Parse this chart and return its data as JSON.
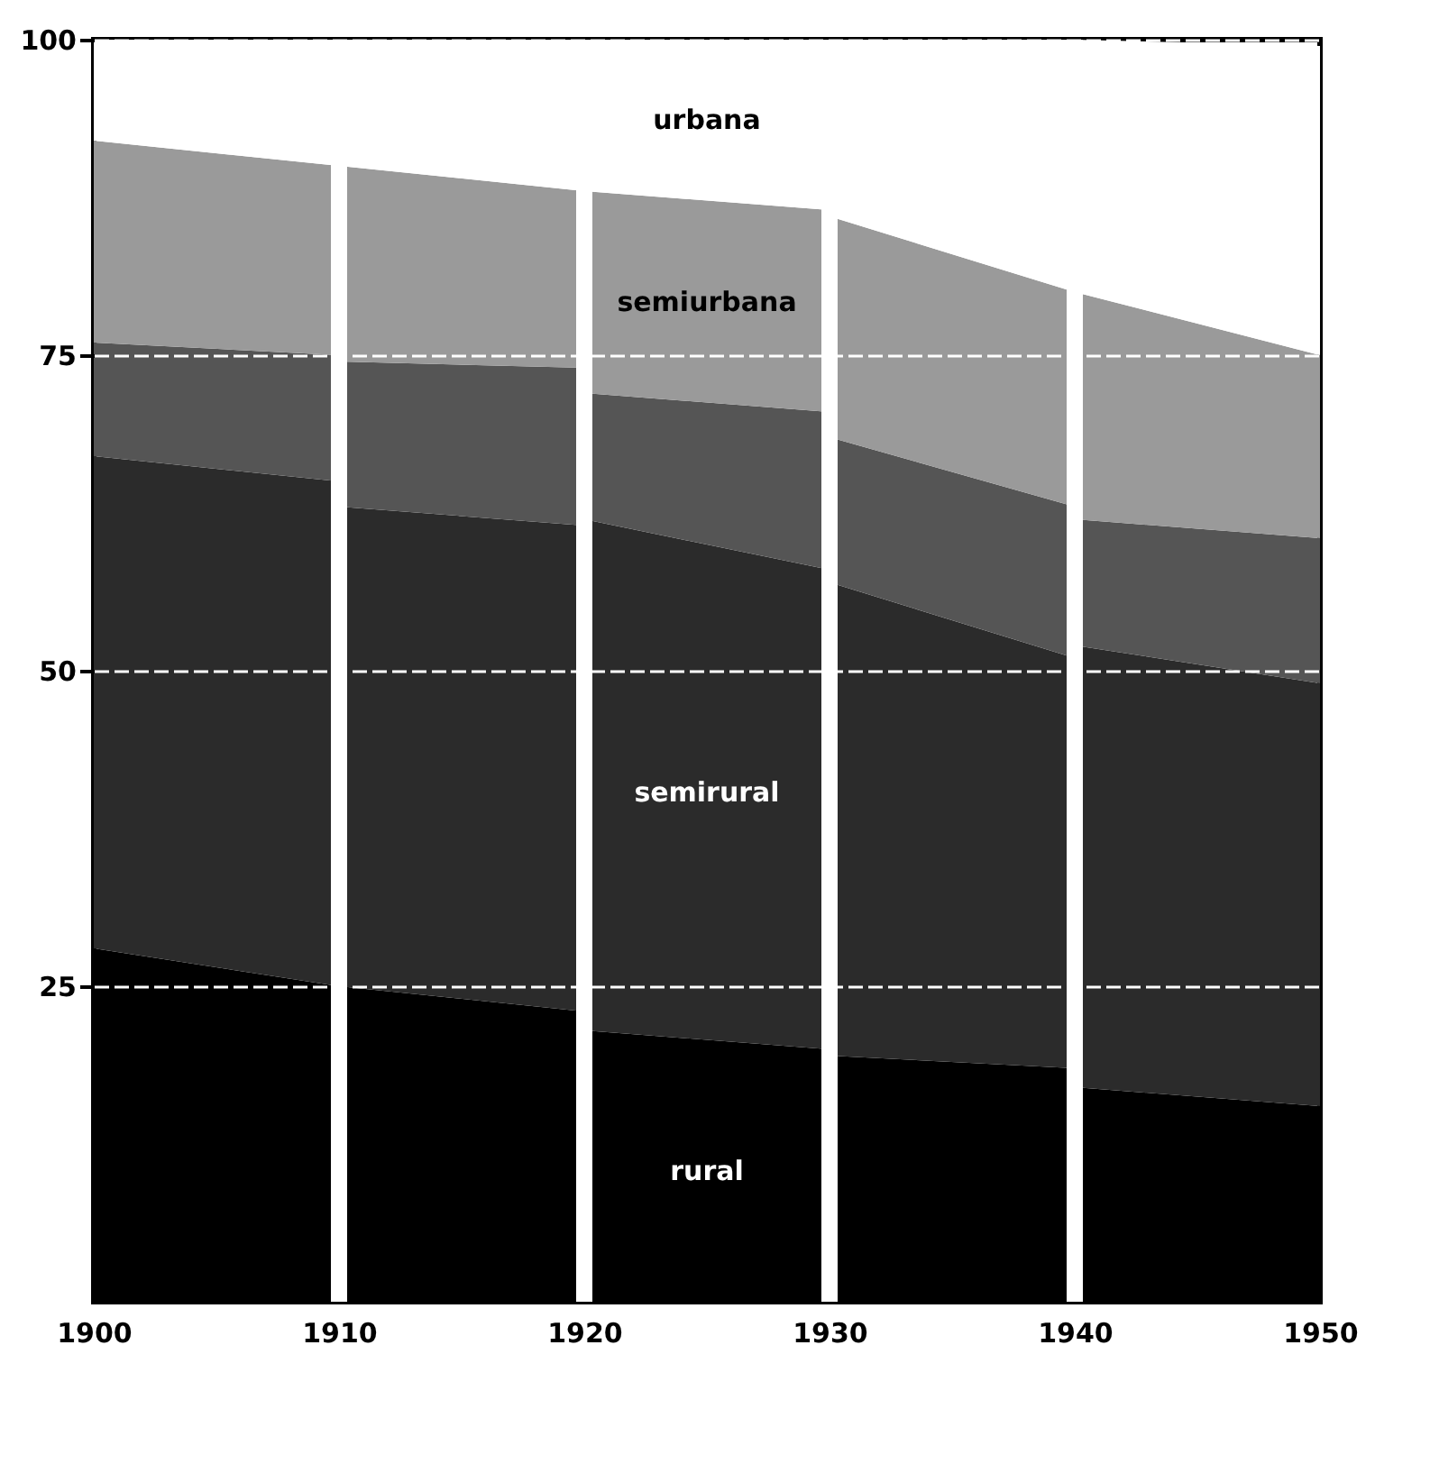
{
  "chart_data": {
    "type": "area",
    "stacked": true,
    "x": [
      1900,
      1910,
      1910,
      1920,
      1920,
      1930,
      1930,
      1940,
      1940,
      1950
    ],
    "xlim": [
      1900,
      1950
    ],
    "xticks": [
      1900,
      1910,
      1920,
      1930,
      1940,
      1950
    ],
    "ylim": [
      0,
      100
    ],
    "yticks": [
      25,
      50,
      75,
      100
    ],
    "grid": "y",
    "series": [
      {
        "name": "rural",
        "color": "#000000",
        "values": [
          28,
          25,
          25,
          23,
          21.5,
          20,
          19.5,
          18.5,
          17,
          15.5
        ]
      },
      {
        "name": "semirural",
        "color": "#2b2b2b",
        "values": [
          39,
          40,
          38,
          38.5,
          40.5,
          38,
          37.5,
          32.5,
          35,
          33.5
        ]
      },
      {
        "color": "#555555",
        "values": [
          9,
          10,
          11.5,
          12.5,
          10,
          12.5,
          11.5,
          12,
          10,
          11.5
        ]
      },
      {
        "name": "semiurbana",
        "color": "#9a9a9a",
        "values": [
          16,
          15,
          15.5,
          14,
          16,
          16,
          17.5,
          17,
          18,
          14.5
        ]
      },
      {
        "name": "urbana",
        "color": "#ffffff",
        "values": [
          8,
          10,
          10,
          12,
          12,
          13.5,
          14,
          20,
          20,
          24.5
        ]
      }
    ],
    "ref_lines": [
      {
        "axis": "x",
        "value": 1910,
        "color": "#ffffff"
      },
      {
        "axis": "x",
        "value": 1920,
        "color": "#ffffff"
      },
      {
        "axis": "x",
        "value": 1930,
        "color": "#ffffff"
      },
      {
        "axis": "x",
        "value": 1940,
        "color": "#ffffff"
      }
    ]
  }
}
